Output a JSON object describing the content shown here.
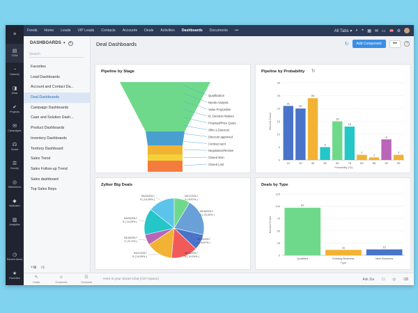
{
  "rail": {
    "items": [
      {
        "icon": "≡",
        "label": ""
      },
      {
        "icon": "▤",
        "label": "CRM"
      },
      {
        "icon": "◔",
        "label": "SalesIQ"
      },
      {
        "icon": "◨",
        "label": "Desk"
      },
      {
        "icon": "✔",
        "label": "Projects"
      },
      {
        "icon": "✉",
        "label": "Campaigns"
      },
      {
        "icon": "☊",
        "label": "Social"
      },
      {
        "icon": "☰",
        "label": "Survey"
      },
      {
        "icon": "◎",
        "label": "SalesInbox"
      },
      {
        "icon": "◆",
        "label": "Motivator"
      },
      {
        "icon": "▥",
        "label": "Analytics"
      }
    ],
    "bottom": [
      {
        "icon": "◷",
        "label": "Recent Items"
      },
      {
        "icon": "★",
        "label": "Favorites"
      }
    ]
  },
  "topnav": {
    "items": [
      "Feeds",
      "Home",
      "Leads",
      "VIP Leads",
      "Contacts",
      "Accounts",
      "Deals",
      "Activities",
      "Dashboards",
      "Documents",
      "•••"
    ],
    "active": "Dashboards",
    "all_tabs": "All Tabs ▾",
    "notification_count": "18"
  },
  "sidebar": {
    "title": "DASHBOARDS",
    "search_placeholder": "Search",
    "items": [
      "Favorites",
      "Lead Dashboards",
      "Account and Contact Da...",
      "Deal Dashboards",
      "Campaign Dashboards",
      "Case and Solution Dash...",
      "Product Dashboards",
      "Inventory Dashboards",
      "Territory Dashboard",
      "Sales Trend",
      "Sales Follow-up Trend",
      "Sales dashboard",
      "Top Sales Reps"
    ],
    "active": "Deal Dashboards"
  },
  "main": {
    "title": "Deal Dashboards",
    "add_component": "Add Component",
    "more": "•••",
    "help": "?"
  },
  "colors": {
    "green": "#6fd98b",
    "blue": "#4a74c9",
    "orange": "#f2b233",
    "teal": "#25c6c8",
    "purple": "#b965b8",
    "sky": "#5cc4ea"
  },
  "bottombar": {
    "tools": [
      {
        "icon": "✎",
        "label": "Chats"
      },
      {
        "icon": "☺",
        "label": "Channels"
      },
      {
        "icon": "☷",
        "label": "Contacts"
      }
    ],
    "search_placeholder": "Here is your Smart Chat (Ctrl+Space)",
    "ask_zia": "Ask Zia"
  },
  "chart_data": [
    {
      "type": "funnel",
      "title": "Pipeline by Stage",
      "stages": [
        "Qualification",
        "Needs Analysis",
        "Value Proposition",
        "Id. Decision Makers",
        "Proposal/Price Quote",
        "Offer a Discount",
        "Discount approved",
        "Contract sent",
        "Negotiation/Review",
        "Closed Won",
        "Closed Lost"
      ]
    },
    {
      "type": "bar",
      "title": "Pipeline by Probability",
      "xlabel": "Probability (%)",
      "ylabel": "Record Count",
      "categories": [
        "10",
        "20",
        "40",
        "50",
        "60",
        "75",
        "80",
        "85",
        "90",
        "95"
      ],
      "values": [
        21,
        20,
        24,
        5,
        15,
        13,
        2,
        1,
        8,
        2
      ],
      "yticks": [
        0,
        5,
        10,
        15,
        20,
        25,
        30
      ],
      "ylim": [
        0,
        30
      ],
      "colors": [
        "#4a74c9",
        "#4a74c9",
        "#f2b233",
        "#25c6c8",
        "#6fd98b",
        "#25c6c8",
        "#f2b233",
        "#f2b233",
        "#b965b8",
        "#f2b233"
      ]
    },
    {
      "type": "pie",
      "title": "Zylker Big Deals",
      "slices": [
        {
          "date": "02/17/2017",
          "count": 3,
          "pct": "8.57%",
          "label": "02/17/2017\n3 ( 8.57% )",
          "color": "#6fd98b"
        },
        {
          "date": "05/18/2017",
          "count": 7,
          "pct": "20.00%",
          "label": "05/18/2017\n7 ( 20.00% )",
          "color": "#6aa0d8"
        },
        {
          "date": "06/15/2017",
          "count": 3,
          "pct": "8.57%",
          "label": "06/15/2017\n3 ( 8.57% )",
          "color": "#4a74c9"
        },
        {
          "date": "06/16/2017",
          "count": 5,
          "pct": "14.29%",
          "label": "06/16/2017\n5 ( 14.29% )",
          "color": "#f25a5a"
        },
        {
          "date": "04/17/2017",
          "count": 5,
          "pct": "14.29%",
          "label": "04/17/2017\n5 ( 14.29% )",
          "color": "#f2b233"
        },
        {
          "date": "04/18/2017",
          "count": 2,
          "pct": "5.71%",
          "label": "04/18/2017\n2 ( 5.71% )",
          "color": "#b965b8"
        },
        {
          "date": "04/03/2017",
          "count": 5,
          "pct": "14.29%",
          "label": "04/03/2017\n5 ( 14.29% )",
          "color": "#25c6c8"
        },
        {
          "date": "05/19/2017",
          "count": 5,
          "pct": "14.29%",
          "label": "05/19/2017\n5 ( 14.29% )",
          "color": "#5cc4ea"
        }
      ]
    },
    {
      "type": "bar",
      "title": "Deals by Type",
      "xlabel": "Type",
      "ylabel": "Record Count",
      "categories": [
        "Qualified",
        "Existing Business",
        "New Business"
      ],
      "values": [
        97,
        11,
        12
      ],
      "yticks": [
        0,
        25,
        50,
        75,
        100,
        125
      ],
      "ylim": [
        0,
        125
      ],
      "colors": [
        "#6fd98b",
        "#f2b233",
        "#4a74c9"
      ]
    }
  ]
}
